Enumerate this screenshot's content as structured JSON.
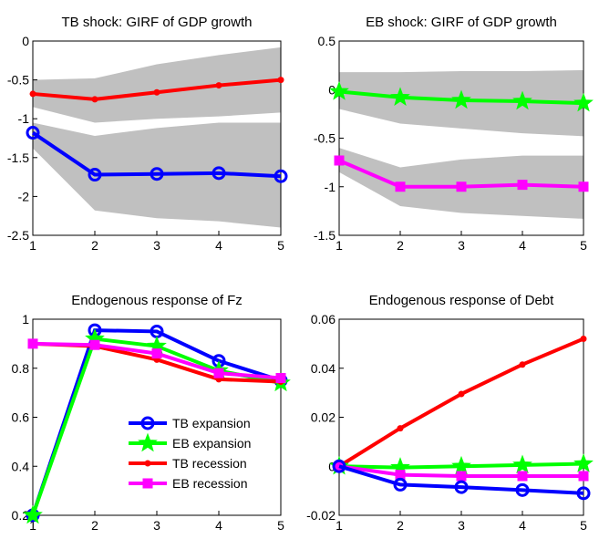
{
  "chart_data": [
    {
      "type": "line",
      "title": "TB shock: GIRF of GDP growth",
      "x": [
        1,
        2,
        3,
        4,
        5
      ],
      "xlim": [
        1,
        5
      ],
      "xticks": [
        1,
        2,
        3,
        4,
        5
      ],
      "ylim": [
        -2.5,
        0
      ],
      "yticks": [
        -2.5,
        -2,
        -1.5,
        -1,
        -0.5,
        0
      ],
      "bands": [
        {
          "color": "#c0c0c0",
          "upper": [
            -0.5,
            -0.48,
            -0.3,
            -0.18,
            -0.08
          ],
          "lower": [
            -0.85,
            -1.05,
            -1.0,
            -0.97,
            -0.92
          ]
        },
        {
          "color": "#c0c0c0",
          "upper": [
            -1.05,
            -1.22,
            -1.12,
            -1.05,
            -1.05
          ],
          "lower": [
            -1.38,
            -2.18,
            -2.28,
            -2.32,
            -2.4
          ]
        }
      ],
      "series": [
        {
          "color": "#ff0000",
          "marker": "dot",
          "values": [
            -0.68,
            -0.75,
            -0.66,
            -0.57,
            -0.5
          ]
        },
        {
          "color": "#0000ff",
          "marker": "circle",
          "values": [
            -1.18,
            -1.72,
            -1.71,
            -1.7,
            -1.74
          ]
        }
      ]
    },
    {
      "type": "line",
      "title": "EB shock: GIRF of GDP growth",
      "x": [
        1,
        2,
        3,
        4,
        5
      ],
      "xlim": [
        1,
        5
      ],
      "xticks": [
        1,
        2,
        3,
        4,
        5
      ],
      "ylim": [
        -1.5,
        0.5
      ],
      "yticks": [
        -1.5,
        -1,
        -0.5,
        0,
        0.5
      ],
      "bands": [
        {
          "color": "#c0c0c0",
          "upper": [
            0.18,
            0.18,
            0.19,
            0.19,
            0.2
          ],
          "lower": [
            -0.2,
            -0.35,
            -0.4,
            -0.45,
            -0.48
          ]
        },
        {
          "color": "#c0c0c0",
          "upper": [
            -0.6,
            -0.8,
            -0.72,
            -0.68,
            -0.68
          ],
          "lower": [
            -0.85,
            -1.2,
            -1.27,
            -1.3,
            -1.33
          ]
        }
      ],
      "series": [
        {
          "color": "#00ff00",
          "marker": "star",
          "values": [
            -0.02,
            -0.08,
            -0.11,
            -0.12,
            -0.14
          ]
        },
        {
          "color": "#ff00ff",
          "marker": "square",
          "values": [
            -0.73,
            -1.0,
            -1.0,
            -0.98,
            -1.0
          ]
        }
      ]
    },
    {
      "type": "line",
      "title": "Endogenous response of Fz",
      "x": [
        1,
        2,
        3,
        4,
        5
      ],
      "xlim": [
        1,
        5
      ],
      "xticks": [
        1,
        2,
        3,
        4,
        5
      ],
      "ylim": [
        0.2,
        1
      ],
      "yticks": [
        0.2,
        0.4,
        0.6,
        0.8,
        1
      ],
      "legend": "lower right",
      "series": [
        {
          "name": "TB expansion",
          "color": "#0000ff",
          "marker": "circle",
          "values": [
            0.2,
            0.955,
            0.95,
            0.83,
            0.75
          ]
        },
        {
          "name": "EB expansion",
          "color": "#00ff00",
          "marker": "star",
          "values": [
            0.2,
            0.92,
            0.89,
            0.79,
            0.74
          ]
        },
        {
          "name": "TB recession",
          "color": "#ff0000",
          "marker": "dot",
          "values": [
            0.9,
            0.89,
            0.835,
            0.755,
            0.745
          ]
        },
        {
          "name": "EB recession",
          "color": "#ff00ff",
          "marker": "square",
          "values": [
            0.9,
            0.895,
            0.86,
            0.78,
            0.76
          ]
        }
      ]
    },
    {
      "type": "line",
      "title": "Endogenous response of Debt",
      "x": [
        1,
        2,
        3,
        4,
        5
      ],
      "xlim": [
        1,
        5
      ],
      "xticks": [
        1,
        2,
        3,
        4,
        5
      ],
      "ylim": [
        -0.02,
        0.06
      ],
      "yticks": [
        -0.02,
        0,
        0.02,
        0.04,
        0.06
      ],
      "series": [
        {
          "color": "#ff0000",
          "marker": "dot",
          "values": [
            0,
            0.0155,
            0.0295,
            0.0415,
            0.052
          ]
        },
        {
          "color": "#00ff00",
          "marker": "star",
          "values": [
            0,
            -0.0005,
            0,
            0.0005,
            0.001
          ]
        },
        {
          "color": "#ff00ff",
          "marker": "square",
          "values": [
            0,
            -0.0035,
            -0.004,
            -0.004,
            -0.004
          ]
        },
        {
          "color": "#0000ff",
          "marker": "circle",
          "values": [
            0,
            -0.0075,
            -0.0085,
            -0.0097,
            -0.011
          ]
        }
      ]
    }
  ]
}
